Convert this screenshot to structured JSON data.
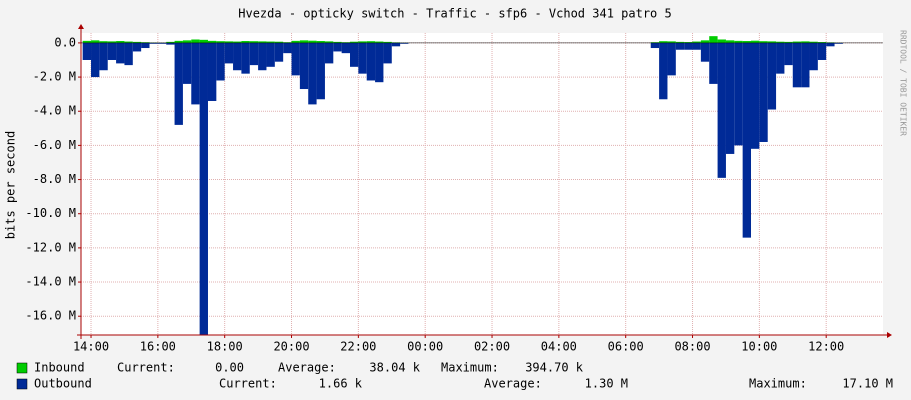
{
  "chart_data": {
    "type": "area",
    "title": "Hvezda - opticky switch - Traffic - sfp6 - Vchod 341 patro 5",
    "y_label": "bits per second",
    "side_note": "RRDTOOL / TOBI OETIKER",
    "grid": true,
    "xlim": [
      13.7,
      37.7
    ],
    "xticks": [
      {
        "value": 14,
        "label": "14:00"
      },
      {
        "value": 16,
        "label": "16:00"
      },
      {
        "value": 18,
        "label": "18:00"
      },
      {
        "value": 20,
        "label": "20:00"
      },
      {
        "value": 22,
        "label": "22:00"
      },
      {
        "value": 24,
        "label": "00:00"
      },
      {
        "value": 26,
        "label": "02:00"
      },
      {
        "value": 28,
        "label": "04:00"
      },
      {
        "value": 30,
        "label": "06:00"
      },
      {
        "value": 32,
        "label": "08:00"
      },
      {
        "value": 34,
        "label": "10:00"
      },
      {
        "value": 36,
        "label": "12:00"
      }
    ],
    "ylim": [
      -17100000,
      580000
    ],
    "yticks": [
      {
        "value": 0,
        "label": "0.0"
      },
      {
        "value": -2000000,
        "label": "-2.0 M"
      },
      {
        "value": -4000000,
        "label": "-4.0 M"
      },
      {
        "value": -6000000,
        "label": "-6.0 M"
      },
      {
        "value": -8000000,
        "label": "-8.0 M"
      },
      {
        "value": -10000000,
        "label": "-10.0 M"
      },
      {
        "value": -12000000,
        "label": "-12.0 M"
      },
      {
        "value": -14000000,
        "label": "-14.0 M"
      },
      {
        "value": -16000000,
        "label": "-16.0 M"
      }
    ],
    "x": [
      13.75,
      14,
      14.25,
      14.5,
      14.75,
      15,
      15.25,
      15.5,
      15.75,
      16,
      16.25,
      16.5,
      16.75,
      17,
      17.25,
      17.5,
      17.75,
      18,
      18.25,
      18.5,
      18.75,
      19,
      19.25,
      19.5,
      19.75,
      20,
      20.25,
      20.5,
      20.75,
      21,
      21.25,
      21.5,
      21.75,
      22,
      22.25,
      22.5,
      22.75,
      23,
      23.25,
      23.5,
      23.75,
      24,
      24.25,
      24.5,
      24.75,
      25,
      25.25,
      25.5,
      25.75,
      26,
      26.25,
      26.5,
      26.75,
      27,
      27.25,
      27.5,
      27.75,
      28,
      28.25,
      28.5,
      28.75,
      29,
      29.25,
      29.5,
      29.75,
      30,
      30.25,
      30.5,
      30.75,
      31,
      31.25,
      31.5,
      31.75,
      32,
      32.25,
      32.5,
      32.75,
      33,
      33.25,
      33.5,
      33.75,
      34,
      34.25,
      34.5,
      34.75,
      35,
      35.25,
      35.5,
      35.75,
      36,
      36.25,
      36.5
    ],
    "series": [
      {
        "name": "Inbound",
        "color": "#00cc00",
        "values": [
          120000,
          150000,
          100000,
          90000,
          110000,
          80000,
          60000,
          40000,
          20000,
          10000,
          60000,
          120000,
          150000,
          200000,
          180000,
          120000,
          100000,
          90000,
          80000,
          110000,
          100000,
          90000,
          80000,
          70000,
          40000,
          120000,
          150000,
          130000,
          110000,
          90000,
          60000,
          40000,
          70000,
          90000,
          100000,
          80000,
          60000,
          30000,
          10000,
          0,
          0,
          0,
          0,
          0,
          0,
          0,
          0,
          0,
          0,
          0,
          0,
          0,
          0,
          0,
          0,
          0,
          0,
          0,
          0,
          0,
          0,
          0,
          0,
          0,
          0,
          0,
          0,
          0,
          40000,
          100000,
          90000,
          60000,
          50000,
          80000,
          150000,
          394700,
          200000,
          150000,
          120000,
          110000,
          130000,
          100000,
          90000,
          70000,
          60000,
          80000,
          90000,
          70000,
          50000,
          30000,
          10000,
          0
        ],
        "stats": [
          {
            "label": "Current:",
            "value": "0.00"
          },
          {
            "label": "Average:",
            "value": "38.04 k"
          },
          {
            "label": "Maximum:",
            "value": "394.70 k"
          }
        ]
      },
      {
        "name": "Outbound",
        "color": "#002a97",
        "values": [
          -1000000,
          -2000000,
          -1600000,
          -1000000,
          -1200000,
          -1300000,
          -500000,
          -300000,
          -50000,
          -50000,
          -100000,
          -4800000,
          -2400000,
          -3600000,
          -17100000,
          -3400000,
          -2200000,
          -1200000,
          -1600000,
          -1800000,
          -1300000,
          -1600000,
          -1400000,
          -1100000,
          -600000,
          -1900000,
          -2700000,
          -3600000,
          -3300000,
          -1200000,
          -500000,
          -600000,
          -1400000,
          -1800000,
          -2200000,
          -2300000,
          -1200000,
          -200000,
          -50000,
          0,
          0,
          0,
          0,
          0,
          0,
          0,
          0,
          0,
          0,
          0,
          0,
          0,
          0,
          0,
          0,
          0,
          0,
          0,
          0,
          0,
          0,
          0,
          0,
          0,
          0,
          0,
          0,
          0,
          -300000,
          -3300000,
          -1900000,
          -400000,
          -400000,
          -400000,
          -1100000,
          -2400000,
          -7900000,
          -6500000,
          -6000000,
          -11400000,
          -6200000,
          -5800000,
          -3900000,
          -1800000,
          -1300000,
          -2600000,
          -2600000,
          -1600000,
          -1000000,
          -200000,
          -50000,
          0
        ],
        "stats": [
          {
            "label": "Current:",
            "value": "1.66 k"
          },
          {
            "label": "Average:",
            "value": "1.30 M"
          },
          {
            "label": "Maximum:",
            "value": "17.10 M"
          }
        ]
      }
    ]
  }
}
